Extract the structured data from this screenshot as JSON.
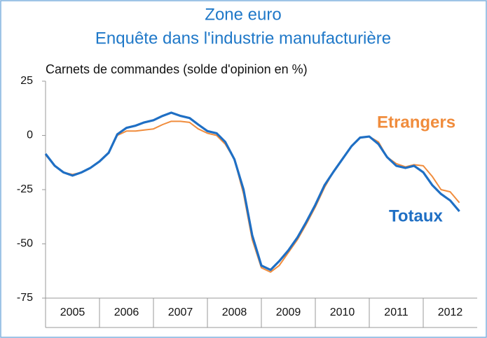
{
  "chart_data": {
    "type": "line",
    "title": "Zone euro",
    "subtitle": "Enquête dans l'industrie manufacturière",
    "y_label": "Carnets de commandes (solde d'opinion en %)",
    "xlim": [
      2005,
      2013
    ],
    "xticks": [
      {
        "value": 2005.5,
        "label": "2005"
      },
      {
        "value": 2006.5,
        "label": "2006"
      },
      {
        "value": 2007.5,
        "label": "2007"
      },
      {
        "value": 2008.5,
        "label": "2008"
      },
      {
        "value": 2009.5,
        "label": "2009"
      },
      {
        "value": 2010.5,
        "label": "2010"
      },
      {
        "value": 2011.5,
        "label": "2011"
      },
      {
        "value": 2012.5,
        "label": "2012"
      }
    ],
    "ylim": [
      -75,
      25
    ],
    "yticks": [
      25,
      0,
      -25,
      -50,
      -75
    ],
    "x": [
      2005.0,
      2005.17,
      2005.33,
      2005.5,
      2005.67,
      2005.83,
      2006.0,
      2006.17,
      2006.33,
      2006.5,
      2006.67,
      2006.83,
      2007.0,
      2007.17,
      2007.33,
      2007.5,
      2007.67,
      2007.83,
      2008.0,
      2008.17,
      2008.33,
      2008.5,
      2008.67,
      2008.83,
      2009.0,
      2009.17,
      2009.33,
      2009.5,
      2009.67,
      2009.83,
      2010.0,
      2010.17,
      2010.33,
      2010.5,
      2010.67,
      2010.83,
      2011.0,
      2011.17,
      2011.33,
      2011.5,
      2011.67,
      2011.83,
      2012.0,
      2012.17,
      2012.33,
      2012.5,
      2012.67
    ],
    "series": [
      {
        "name": "Etrangers",
        "color": "#f08c3c",
        "values": [
          -9,
          -14,
          -17,
          -18,
          -17,
          -15,
          -12,
          -8,
          0,
          2,
          2,
          2.5,
          3,
          5,
          6.5,
          6.5,
          6,
          3,
          1,
          0,
          -4,
          -11,
          -27,
          -48,
          -61,
          -63,
          -60,
          -54,
          -48,
          -41,
          -33,
          -24,
          -17,
          -11,
          -5,
          -1,
          -0.5,
          -3,
          -10,
          -13,
          -14.5,
          -13.5,
          -14,
          -19,
          -25,
          -26,
          -31
        ]
      },
      {
        "name": "Totaux",
        "color": "#1f6fc4",
        "values": [
          -8.5,
          -14,
          -17,
          -18.5,
          -17,
          -15,
          -12,
          -8,
          0.5,
          3.5,
          4.5,
          6,
          7,
          9,
          10.5,
          9,
          8,
          5,
          2,
          1,
          -3,
          -11,
          -25,
          -46,
          -60,
          -62,
          -58,
          -53,
          -47,
          -40,
          -32,
          -23,
          -17,
          -11,
          -5,
          -1,
          -0.5,
          -4,
          -10,
          -14,
          -15,
          -14,
          -17,
          -23,
          -27,
          -30,
          -35
        ]
      }
    ]
  }
}
